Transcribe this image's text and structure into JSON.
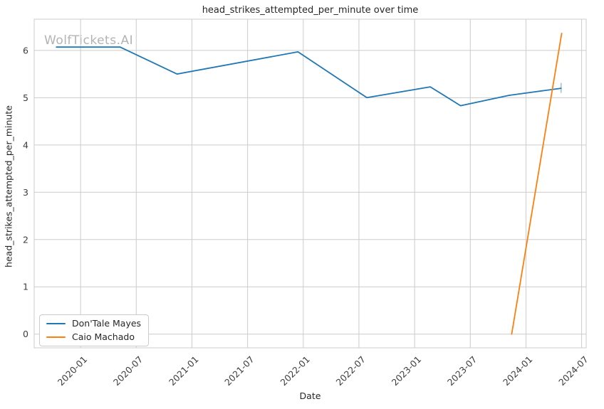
{
  "watermark": "WolfTickets.AI",
  "colors": {
    "grid": "#cccccc",
    "spine": "#cccccc",
    "title_text": "#262626",
    "tick_text": "#3d3d3d",
    "watermark_text": "#b3b3b3",
    "background": "#ffffff",
    "series_blue": "#1f77b4",
    "series_orange": "#ff7f0e"
  },
  "chart_data": {
    "type": "line",
    "title": "head_strikes_attempted_per_minute over time",
    "xlabel": "Date",
    "ylabel": "head_strikes_attempted_per_minute",
    "grid": true,
    "legend_position": "lower left",
    "x_tick_labels": [
      "2020-01",
      "2020-07",
      "2021-01",
      "2021-07",
      "2022-01",
      "2022-07",
      "2023-01",
      "2023-07",
      "2024-01",
      "2024-07"
    ],
    "y_ticks": [
      0,
      1,
      2,
      3,
      4,
      5,
      6
    ],
    "y_tick_labels": [
      "0",
      "1",
      "2",
      "3",
      "4",
      "5",
      "6"
    ],
    "xlim": [
      "2019-08-01",
      "2024-07-16"
    ],
    "ylim": [
      -0.29,
      6.66
    ],
    "series": [
      {
        "name": "Don'Tale Mayes",
        "color": "#1f77b4",
        "end_tick": true,
        "points": [
          [
            "2019-10-13",
            6.07
          ],
          [
            "2020-05-09",
            6.07
          ],
          [
            "2020-11-13",
            5.5
          ],
          [
            "2021-12-14",
            5.97
          ],
          [
            "2022-07-27",
            5.0
          ],
          [
            "2023-02-22",
            5.23
          ],
          [
            "2023-05-30",
            4.83
          ],
          [
            "2023-11-07",
            5.05
          ],
          [
            "2024-04-25",
            5.2
          ]
        ]
      },
      {
        "name": "Caio Machado",
        "color": "#ff7f0e",
        "end_tick": false,
        "points": [
          [
            "2023-11-15",
            0.0
          ],
          [
            "2024-04-27",
            6.36
          ]
        ]
      }
    ]
  }
}
